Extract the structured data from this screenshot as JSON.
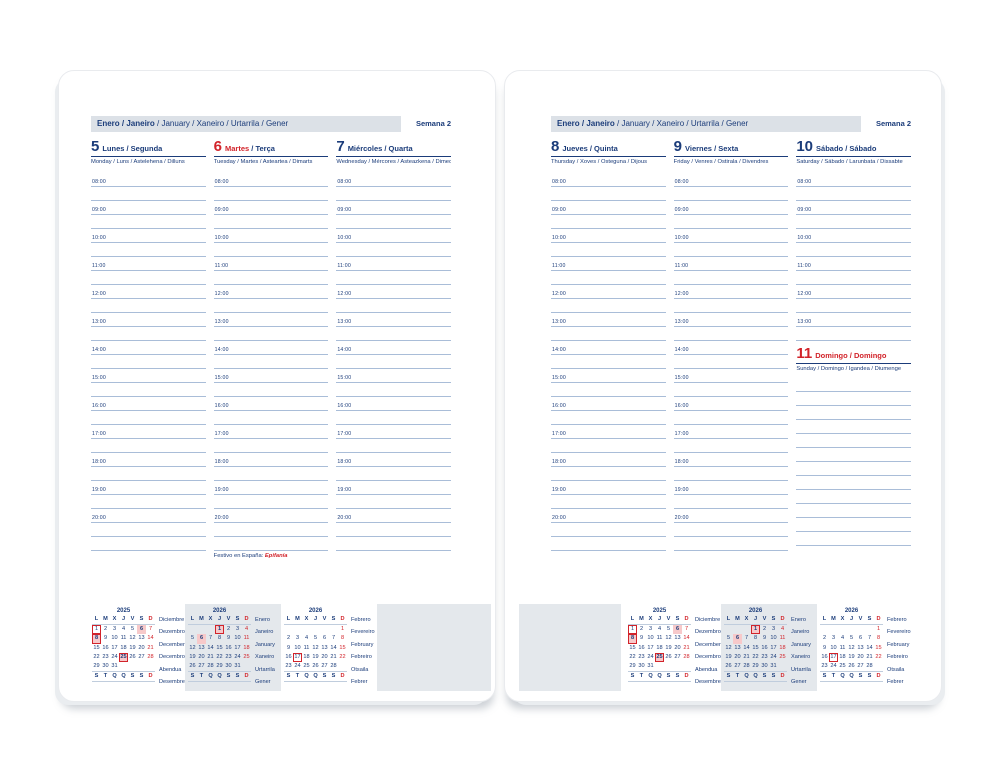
{
  "header": {
    "month_bold": "Enero / Janeiro",
    "month_rest": " / January / Xaneiro / Urtarrila / Gener",
    "week_label": "Semana 2"
  },
  "hours": [
    "08:00",
    "09:00",
    "10:00",
    "11:00",
    "12:00",
    "13:00",
    "14:00",
    "15:00",
    "16:00",
    "17:00",
    "18:00",
    "19:00",
    "20:00"
  ],
  "footnote": {
    "prefix": "Festivo en España: ",
    "holiday": "Epifanía"
  },
  "pages": {
    "left": {
      "days": [
        {
          "num": "5",
          "num_red": false,
          "names": [
            {
              "text": "Lunes / Segunda",
              "red": false
            }
          ],
          "sub": "Monday / Luns / Astelehena / Dilluns",
          "lines": 27,
          "label_count": 13
        },
        {
          "num": "6",
          "num_red": true,
          "names": [
            {
              "text": "Martes",
              "red": true
            },
            {
              "text": " / Terça",
              "red": false
            }
          ],
          "sub": "Tuesday / Martes / Asteartea / Dimarts",
          "lines": 27,
          "label_count": 13,
          "note": true
        },
        {
          "num": "7",
          "num_red": false,
          "names": [
            {
              "text": "Miércoles / Quarta",
              "red": false
            }
          ],
          "sub": "Wednesday / Mércores / Asteazkena / Dimecres",
          "lines": 27,
          "label_count": 13
        }
      ]
    },
    "right": {
      "days": [
        {
          "num": "8",
          "num_red": false,
          "names": [
            {
              "text": "Jueves / Quinta",
              "red": false
            }
          ],
          "sub": "Thursday / Xoves / Osteguna / Dijous",
          "lines": 27,
          "label_count": 13
        },
        {
          "num": "9",
          "num_red": false,
          "names": [
            {
              "text": "Viernes / Sexta",
              "red": false
            }
          ],
          "sub": "Friday / Venres / Ostirala / Divendres",
          "lines": 27,
          "label_count": 13
        },
        {
          "num": "10",
          "num_red": false,
          "names": [
            {
              "text": "Sábado / Sábado",
              "red": false
            }
          ],
          "sub": "Saturday / Sábado / Larunbata / Dissabte",
          "lines": 12,
          "label_count": 6,
          "second": {
            "num": "11",
            "num_red": true,
            "names": [
              {
                "text": "Domingo / Domingo",
                "red": true
              }
            ],
            "sub": "Sunday / Domingo / Igandea / Diumenge",
            "lines": 12,
            "label_count": 0
          }
        }
      ]
    }
  },
  "weekdays_top": [
    "L",
    "M",
    "X",
    "J",
    "V",
    "S",
    "D"
  ],
  "weekdays_bottom": [
    "S",
    "T",
    "Q",
    "Q",
    "S",
    "S",
    "D"
  ],
  "minicalendars": [
    {
      "year": "2025",
      "id": "december-2025",
      "months": [
        "Diciembre",
        "Dezembro",
        "December",
        "Decembro",
        "Abendua",
        "Desembre"
      ],
      "weeks": [
        [
          1,
          2,
          3,
          4,
          5,
          6,
          7
        ],
        [
          8,
          9,
          10,
          11,
          12,
          13,
          14
        ],
        [
          15,
          16,
          17,
          18,
          19,
          20,
          21
        ],
        [
          22,
          23,
          24,
          25,
          26,
          27,
          28
        ],
        [
          29,
          30,
          31,
          null,
          null,
          null,
          null
        ]
      ],
      "fill": [
        6,
        8,
        25
      ],
      "outline": [
        1,
        8,
        25
      ],
      "red": [
        7,
        14,
        21,
        28
      ],
      "highlight": false
    },
    {
      "year": "2026",
      "id": "january-2026",
      "months": [
        "Enero",
        "Janeiro",
        "January",
        "Xaneiro",
        "Urtarrila",
        "Gener"
      ],
      "weeks": [
        [
          null,
          null,
          null,
          1,
          2,
          3,
          4
        ],
        [
          5,
          6,
          7,
          8,
          9,
          10,
          11
        ],
        [
          12,
          13,
          14,
          15,
          16,
          17,
          18
        ],
        [
          19,
          20,
          21,
          22,
          23,
          24,
          25
        ],
        [
          26,
          27,
          28,
          29,
          30,
          31,
          null
        ]
      ],
      "fill": [
        1,
        6
      ],
      "outline": [
        1
      ],
      "red": [
        4,
        11,
        18,
        25
      ],
      "highlight": true
    },
    {
      "year": "2026",
      "id": "february-2026",
      "months": [
        "Febrero",
        "Fevereiro",
        "February",
        "Febreiro",
        "Otsaila",
        "Febrer"
      ],
      "weeks": [
        [
          null,
          null,
          null,
          null,
          null,
          null,
          1
        ],
        [
          2,
          3,
          4,
          5,
          6,
          7,
          8
        ],
        [
          9,
          10,
          11,
          12,
          13,
          14,
          15
        ],
        [
          16,
          17,
          18,
          19,
          20,
          21,
          22
        ],
        [
          23,
          24,
          25,
          26,
          27,
          28,
          null
        ]
      ],
      "fill": [],
      "outline": [
        17
      ],
      "red": [
        1,
        8,
        15,
        22
      ],
      "highlight": false
    }
  ],
  "colors": {
    "navy_text": "#1b3c7a",
    "red_accent": "#d2232a",
    "rule_line": "#a9bdd8",
    "header_bar_bg": "#dce1e7",
    "mini_highlight_bg": "#e4e8ec",
    "holiday_fill": "#f7c9ca"
  }
}
